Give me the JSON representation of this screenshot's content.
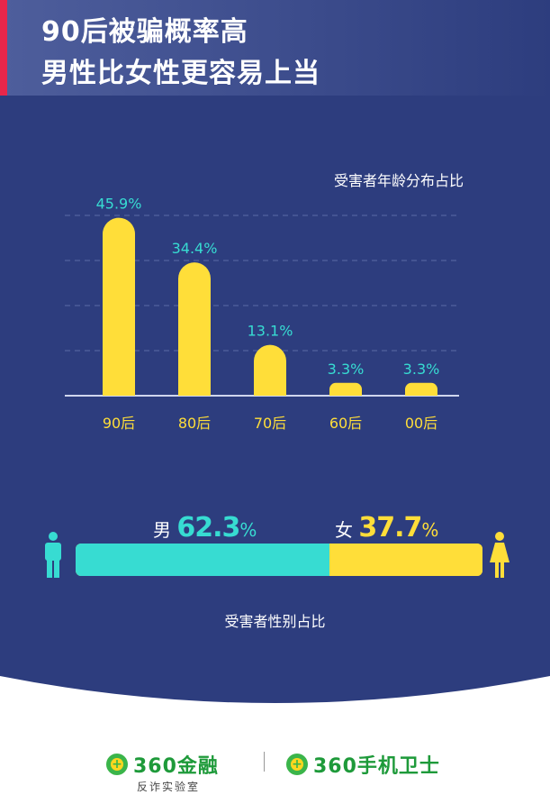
{
  "header": {
    "line1": "90后被骗概率高",
    "line2": "男性比女性更容易上当"
  },
  "chart_data": {
    "type": "bar",
    "title": "受害者年龄分布占比",
    "categories": [
      "90后",
      "80后",
      "70后",
      "60后",
      "00后"
    ],
    "values": [
      45.9,
      34.4,
      13.1,
      3.3,
      3.3
    ],
    "value_labels": [
      "45.9%",
      "34.4%",
      "13.1%",
      "3.3%",
      "3.3%"
    ],
    "ylim": [
      0,
      50
    ],
    "grid": true,
    "bar_color": "#ffde39",
    "label_color": "#37dcd2"
  },
  "gender": {
    "male_label": "男",
    "male_value": "62.3",
    "male_fraction": 0.623,
    "female_label": "女",
    "female_value": "37.7",
    "female_fraction": 0.377,
    "unit": "%",
    "caption": "受害者性别占比",
    "male_color": "#37dcd2",
    "female_color": "#ffde39",
    "male_icon": "male-person-icon",
    "female_icon": "female-person-icon"
  },
  "footer": {
    "brand1": "360金融",
    "brand1_sub": "反诈实验室",
    "brand2": "360手机卫士",
    "logo_icon": "360-logo-icon"
  }
}
